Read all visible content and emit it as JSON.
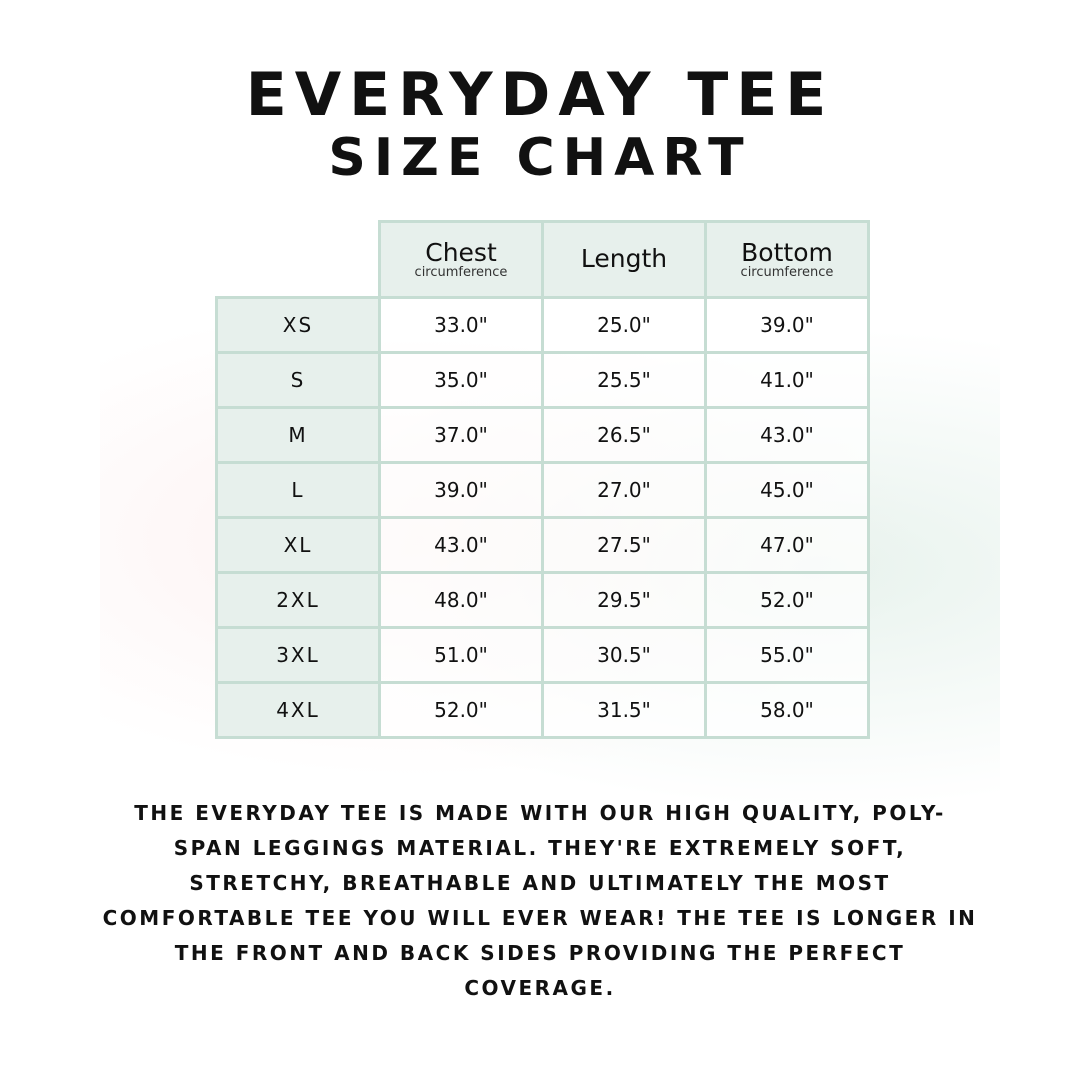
{
  "title_line1": "EVERYDAY TEE",
  "title_line2": "SIZE CHART",
  "columns": [
    {
      "label": "Chest",
      "sub": "circumference"
    },
    {
      "label": "Length",
      "sub": ""
    },
    {
      "label": "Bottom",
      "sub": "circumference"
    }
  ],
  "rows": [
    {
      "size": "XS",
      "chest": "33.0\"",
      "length": "25.0\"",
      "bottom": "39.0\""
    },
    {
      "size": "S",
      "chest": "35.0\"",
      "length": "25.5\"",
      "bottom": "41.0\""
    },
    {
      "size": "M",
      "chest": "37.0\"",
      "length": "26.5\"",
      "bottom": "43.0\""
    },
    {
      "size": "L",
      "chest": "39.0\"",
      "length": "27.0\"",
      "bottom": "45.0\""
    },
    {
      "size": "XL",
      "chest": "43.0\"",
      "length": "27.5\"",
      "bottom": "47.0\""
    },
    {
      "size": "2XL",
      "chest": "48.0\"",
      "length": "29.5\"",
      "bottom": "52.0\""
    },
    {
      "size": "3XL",
      "chest": "51.0\"",
      "length": "30.5\"",
      "bottom": "55.0\""
    },
    {
      "size": "4XL",
      "chest": "52.0\"",
      "length": "31.5\"",
      "bottom": "58.0\""
    }
  ],
  "description": "The Everyday Tee is made with our high quality, poly-span leggings material. They're extremely soft, stretchy, breathable and ultimately the most comfortable tee you will ever wear! The tee is longer in the front and back sides providing the perfect coverage.",
  "colors": {
    "header_bg": "#e7f0ec",
    "border": "#c6ddd3"
  }
}
